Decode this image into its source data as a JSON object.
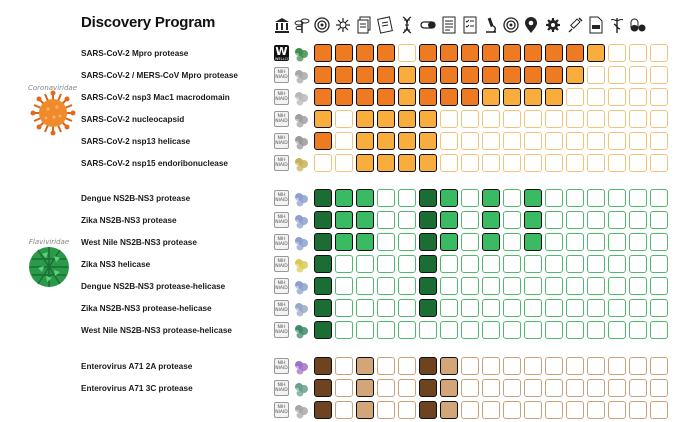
{
  "title": "Discovery Program",
  "header_icons": [
    "institution-icon",
    "plant-icon",
    "target-icon",
    "explosion-icon",
    "document-stack-icon",
    "notes-icon",
    "dna-icon",
    "capsule-icon",
    "document-list-icon",
    "checklist-icon",
    "microscope-icon",
    "target-icon",
    "location-pin-icon",
    "gear-icon",
    "syringe-icon",
    "document-icon",
    "caduceus-icon",
    "pills-icon"
  ],
  "virus_groups": [
    {
      "label": "Coronaviridae",
      "icon": "coronavirus-icon",
      "color": "#f08a2a"
    },
    {
      "label": "Flaviviridae",
      "icon": "flavivirus-icon",
      "color": "#2a9a4a"
    }
  ],
  "palettes": {
    "orange": {
      "border": "#f1c47a",
      "levels": [
        "#ffffff",
        "#fcd98a",
        "#f8ad3d",
        "#ee7a22"
      ]
    },
    "green": {
      "border": "#52b870",
      "levels": [
        "#ffffff",
        "#bfe7c9",
        "#3aba62",
        "#1b6d34"
      ]
    },
    "brown": {
      "border": "#c9a27c",
      "levels": [
        "#ffffff",
        "#ecd8c2",
        "#d2a678",
        "#6d4320"
      ]
    }
  },
  "rows": [
    {
      "label": "SARS-CoV-2 Mpro protease",
      "badge": "W",
      "badge_sub": "WELLCOME",
      "palette": "orange",
      "struct_color": "#3f8f4e",
      "cells": [
        3,
        3,
        3,
        3,
        0,
        3,
        3,
        3,
        3,
        3,
        3,
        3,
        3,
        2,
        0,
        0,
        0
      ]
    },
    {
      "label": "SARS-CoV-2 / MERS-CoV Mpro protease",
      "badge": "NIH NIAID",
      "palette": "orange",
      "struct_color": "#a8a8a8",
      "cells": [
        3,
        3,
        3,
        3,
        2,
        3,
        3,
        3,
        3,
        3,
        3,
        3,
        2,
        0,
        0,
        0,
        0
      ]
    },
    {
      "label": "SARS-CoV-2 nsp3 Mac1 macrodomain",
      "badge": "NIH NIAID",
      "palette": "orange",
      "struct_color": "#b8b8b8",
      "cells": [
        3,
        3,
        3,
        3,
        2,
        3,
        3,
        3,
        2,
        2,
        2,
        2,
        0,
        0,
        0,
        0,
        0
      ]
    },
    {
      "label": "SARS-CoV-2 nucleocapsid",
      "badge": "NIH NIAID",
      "palette": "orange",
      "struct_color": "#a0a0a0",
      "cells": [
        2,
        0,
        2,
        2,
        2,
        2,
        0,
        0,
        0,
        0,
        0,
        0,
        0,
        0,
        0,
        0,
        0
      ]
    },
    {
      "label": "SARS-CoV-2 nsp13 helicase",
      "badge": "NIH NIAID",
      "palette": "orange",
      "struct_color": "#9a9a9a",
      "cells": [
        3,
        0,
        2,
        2,
        2,
        2,
        0,
        0,
        0,
        0,
        0,
        0,
        0,
        0,
        0,
        0,
        0
      ]
    },
    {
      "label": "SARS-CoV-2 nsp15 endoribonuclease",
      "badge": "NIH NIAID",
      "palette": "orange",
      "struct_color": "#c9b35a",
      "cells": [
        0,
        0,
        2,
        2,
        2,
        2,
        0,
        0,
        0,
        0,
        0,
        0,
        0,
        0,
        0,
        0,
        0
      ]
    },
    {
      "label": "Dengue NS2B-NS3 protease",
      "badge": "NIH NIAID",
      "palette": "green",
      "struct_color": "#8fa0d0",
      "cells": [
        3,
        2,
        2,
        0,
        0,
        3,
        2,
        0,
        2,
        0,
        2,
        0,
        0,
        0,
        0,
        0,
        0
      ]
    },
    {
      "label": "Zika NS2B-NS3 protease",
      "badge": "NIH NIAID",
      "palette": "green",
      "struct_color": "#8fa0d0",
      "cells": [
        3,
        2,
        2,
        0,
        0,
        3,
        2,
        0,
        2,
        0,
        2,
        0,
        0,
        0,
        0,
        0,
        0
      ]
    },
    {
      "label": "West Nile NS2B-NS3 protease",
      "badge": "NIH NIAID",
      "palette": "green",
      "struct_color": "#8fa0d0",
      "cells": [
        3,
        2,
        2,
        0,
        0,
        3,
        2,
        0,
        2,
        0,
        2,
        0,
        0,
        0,
        0,
        0,
        0
      ]
    },
    {
      "label": "Zika NS3 helicase",
      "badge": "NIH NIAID",
      "palette": "green",
      "struct_color": "#d8cc55",
      "cells": [
        3,
        0,
        0,
        0,
        0,
        3,
        0,
        0,
        0,
        0,
        0,
        0,
        0,
        0,
        0,
        0,
        0
      ]
    },
    {
      "label": "Dengue NS2B-NS3 protease-helicase",
      "badge": "NIH NIAID",
      "palette": "green",
      "struct_color": "#8fa0d0",
      "cells": [
        3,
        0,
        0,
        0,
        0,
        3,
        0,
        0,
        0,
        0,
        0,
        0,
        0,
        0,
        0,
        0,
        0
      ]
    },
    {
      "label": "Zika NS2B-NS3 protease-helicase",
      "badge": "NIH NIAID",
      "palette": "green",
      "struct_color": "#9aa8c8",
      "cells": [
        3,
        0,
        0,
        0,
        0,
        3,
        0,
        0,
        0,
        0,
        0,
        0,
        0,
        0,
        0,
        0,
        0
      ]
    },
    {
      "label": "West Nile NS2B-NS3 protease-helicase",
      "badge": "NIH NIAID",
      "palette": "green",
      "struct_color": "#3e8a6a",
      "cells": [
        3,
        0,
        0,
        0,
        0,
        0,
        0,
        0,
        0,
        0,
        0,
        0,
        0,
        0,
        0,
        0,
        0
      ]
    },
    {
      "label": "Enterovirus A71 2A protease",
      "badge": "NIH NIAID",
      "palette": "brown",
      "struct_color": "#a070c8",
      "cells": [
        3,
        0,
        2,
        0,
        0,
        3,
        2,
        0,
        0,
        0,
        0,
        0,
        0,
        0,
        0,
        0,
        0
      ]
    },
    {
      "label": "Enterovirus A71 3C protease",
      "badge": "NIH NIAID",
      "palette": "brown",
      "struct_color": "#6aa090",
      "cells": [
        3,
        0,
        2,
        0,
        0,
        3,
        2,
        0,
        0,
        0,
        0,
        0,
        0,
        0,
        0,
        0,
        0
      ]
    },
    {
      "label": "",
      "badge": "NIH NIAID",
      "palette": "brown",
      "struct_color": "#a8a8a8",
      "cells": [
        3,
        0,
        2,
        0,
        0,
        3,
        2,
        0,
        0,
        0,
        0,
        0,
        0,
        0,
        0,
        0,
        0
      ]
    }
  ]
}
